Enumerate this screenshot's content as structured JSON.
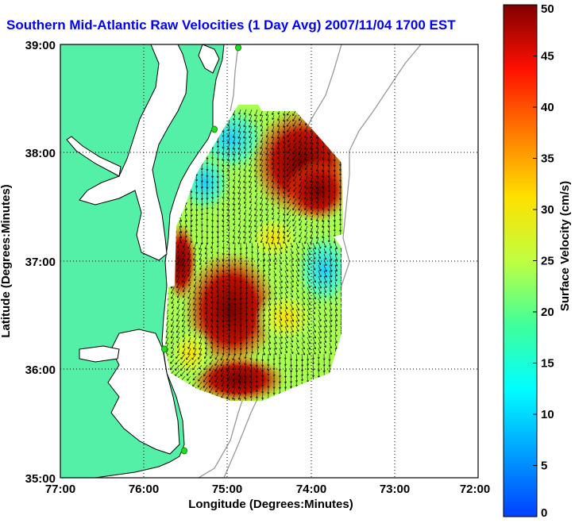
{
  "title": "Southern Mid-Atlantic Raw Velocities (1 Day Avg) 2007/11/04 1700 EST",
  "x_axis": {
    "label": "Longitude (Degrees:Minutes)",
    "ticks": [
      "77:00",
      "76:00",
      "75:00",
      "74:00",
      "73:00",
      "72:00"
    ]
  },
  "y_axis": {
    "label": "Latitude (Degrees:Minutes)",
    "ticks": [
      "39:00",
      "38:00",
      "37:00",
      "36:00",
      "35:00"
    ]
  },
  "colorbar": {
    "label": "Surface Velocity (cm/s)",
    "ticks": [
      "0",
      "5",
      "10",
      "15",
      "20",
      "25",
      "30",
      "35",
      "40",
      "45",
      "50"
    ],
    "min": 0,
    "max": 50
  },
  "colors": {
    "land": "#55f0a8",
    "water": "#ffffff",
    "title": "#0000ff",
    "grid": "#000000",
    "station": "#22cc22"
  },
  "map": {
    "lon_range": [
      -77,
      -72
    ],
    "lat_range": [
      35,
      39
    ],
    "grid": true,
    "stations": "4 green station markers along the coast"
  }
}
